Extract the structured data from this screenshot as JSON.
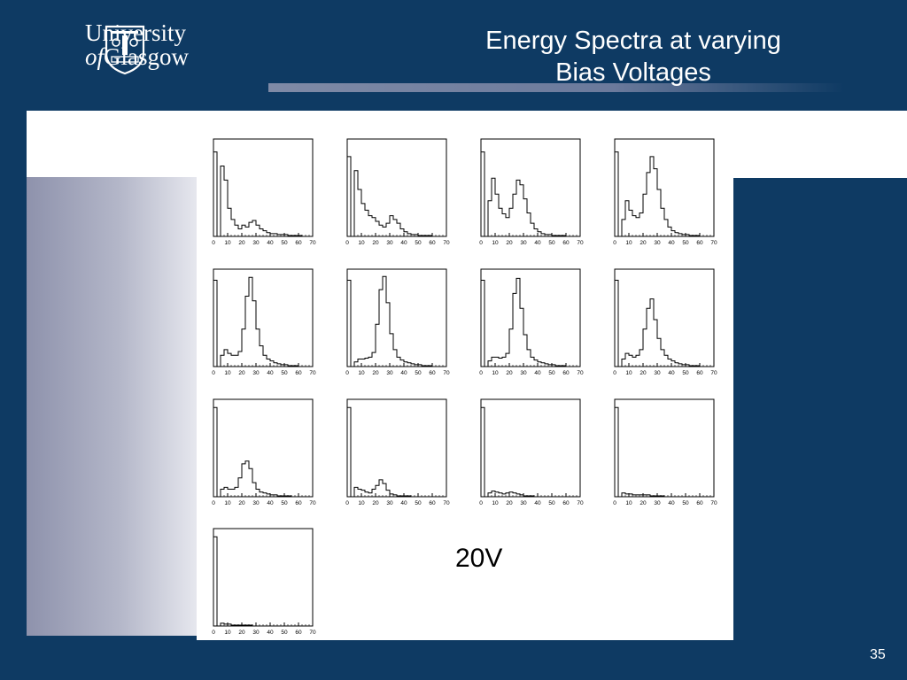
{
  "slide": {
    "title_line1": "Energy Spectra at varying",
    "title_line2": "Bias Voltages",
    "logo_line1": "University",
    "logo_line2_a": "of",
    "logo_line2_b": "Glasgow",
    "voltage_label": "20V",
    "page_number": "35",
    "colors": {
      "background": "#0e3a63",
      "panel": "#ffffff",
      "histogram": "#000000"
    }
  },
  "chart_data": {
    "type": "histogram",
    "layout": "4x4 grid, 13 panels",
    "xlim": [
      0,
      70
    ],
    "x_ticks": [
      "0",
      "10",
      "20",
      "30",
      "40",
      "50",
      "60",
      "70"
    ],
    "ylim": [
      0,
      100
    ],
    "bin_width": 2.5,
    "panels": [
      {
        "values": [
          90,
          0,
          75,
          60,
          30,
          18,
          12,
          8,
          12,
          10,
          15,
          17,
          12,
          8,
          6,
          4,
          3,
          3,
          2,
          2,
          2,
          1,
          1,
          1,
          1,
          0,
          0,
          0
        ]
      },
      {
        "values": [
          85,
          0,
          70,
          50,
          35,
          28,
          22,
          20,
          16,
          12,
          10,
          14,
          22,
          18,
          14,
          8,
          5,
          3,
          2,
          2,
          1,
          1,
          1,
          1,
          0,
          0,
          0,
          0
        ]
      },
      {
        "values": [
          90,
          0,
          38,
          62,
          45,
          30,
          24,
          20,
          30,
          45,
          60,
          55,
          40,
          25,
          14,
          8,
          5,
          3,
          2,
          2,
          1,
          1,
          1,
          1,
          0,
          0,
          0,
          0
        ]
      },
      {
        "values": [
          90,
          0,
          18,
          38,
          28,
          22,
          20,
          25,
          45,
          68,
          85,
          72,
          50,
          30,
          18,
          10,
          6,
          4,
          3,
          2,
          2,
          1,
          1,
          1,
          0,
          0,
          0,
          0
        ]
      },
      {
        "values": [
          92,
          0,
          12,
          18,
          14,
          12,
          12,
          16,
          40,
          75,
          95,
          70,
          40,
          22,
          12,
          8,
          6,
          4,
          3,
          2,
          2,
          1,
          1,
          1,
          0,
          0,
          0,
          0
        ]
      },
      {
        "values": [
          92,
          0,
          5,
          8,
          8,
          9,
          10,
          15,
          45,
          82,
          96,
          68,
          35,
          18,
          10,
          7,
          5,
          4,
          3,
          2,
          2,
          1,
          1,
          1,
          0,
          0,
          0,
          0
        ]
      },
      {
        "values": [
          92,
          0,
          6,
          10,
          10,
          9,
          10,
          14,
          40,
          78,
          94,
          62,
          34,
          18,
          10,
          7,
          5,
          4,
          3,
          2,
          2,
          1,
          1,
          1,
          0,
          0,
          0,
          0
        ]
      },
      {
        "values": [
          92,
          0,
          8,
          14,
          12,
          10,
          12,
          18,
          40,
          62,
          72,
          50,
          30,
          18,
          12,
          8,
          6,
          4,
          3,
          2,
          2,
          1,
          1,
          1,
          0,
          0,
          0,
          0
        ]
      },
      {
        "values": [
          95,
          0,
          8,
          10,
          8,
          8,
          10,
          20,
          35,
          38,
          30,
          15,
          8,
          5,
          4,
          3,
          2,
          2,
          1,
          1,
          1,
          1,
          0,
          0,
          0,
          0,
          0,
          0
        ]
      },
      {
        "values": [
          95,
          0,
          10,
          8,
          7,
          5,
          4,
          8,
          12,
          18,
          14,
          7,
          3,
          2,
          1,
          1,
          1,
          1,
          0,
          0,
          0,
          0,
          0,
          0,
          0,
          0,
          0,
          0
        ]
      },
      {
        "values": [
          95,
          0,
          4,
          6,
          5,
          4,
          3,
          4,
          5,
          4,
          3,
          2,
          1,
          1,
          1,
          0,
          0,
          0,
          0,
          0,
          0,
          0,
          0,
          0,
          0,
          0,
          0,
          0
        ]
      },
      {
        "values": [
          95,
          0,
          4,
          3,
          3,
          2,
          2,
          2,
          2,
          2,
          1,
          1,
          1,
          1,
          0,
          0,
          0,
          0,
          0,
          0,
          0,
          0,
          0,
          0,
          0,
          0,
          0,
          0
        ]
      },
      {
        "values": [
          95,
          0,
          3,
          2,
          2,
          1,
          1,
          1,
          1,
          1,
          1,
          0,
          0,
          0,
          0,
          0,
          0,
          0,
          0,
          0,
          0,
          0,
          0,
          0,
          0,
          0,
          0,
          0
        ]
      }
    ]
  }
}
